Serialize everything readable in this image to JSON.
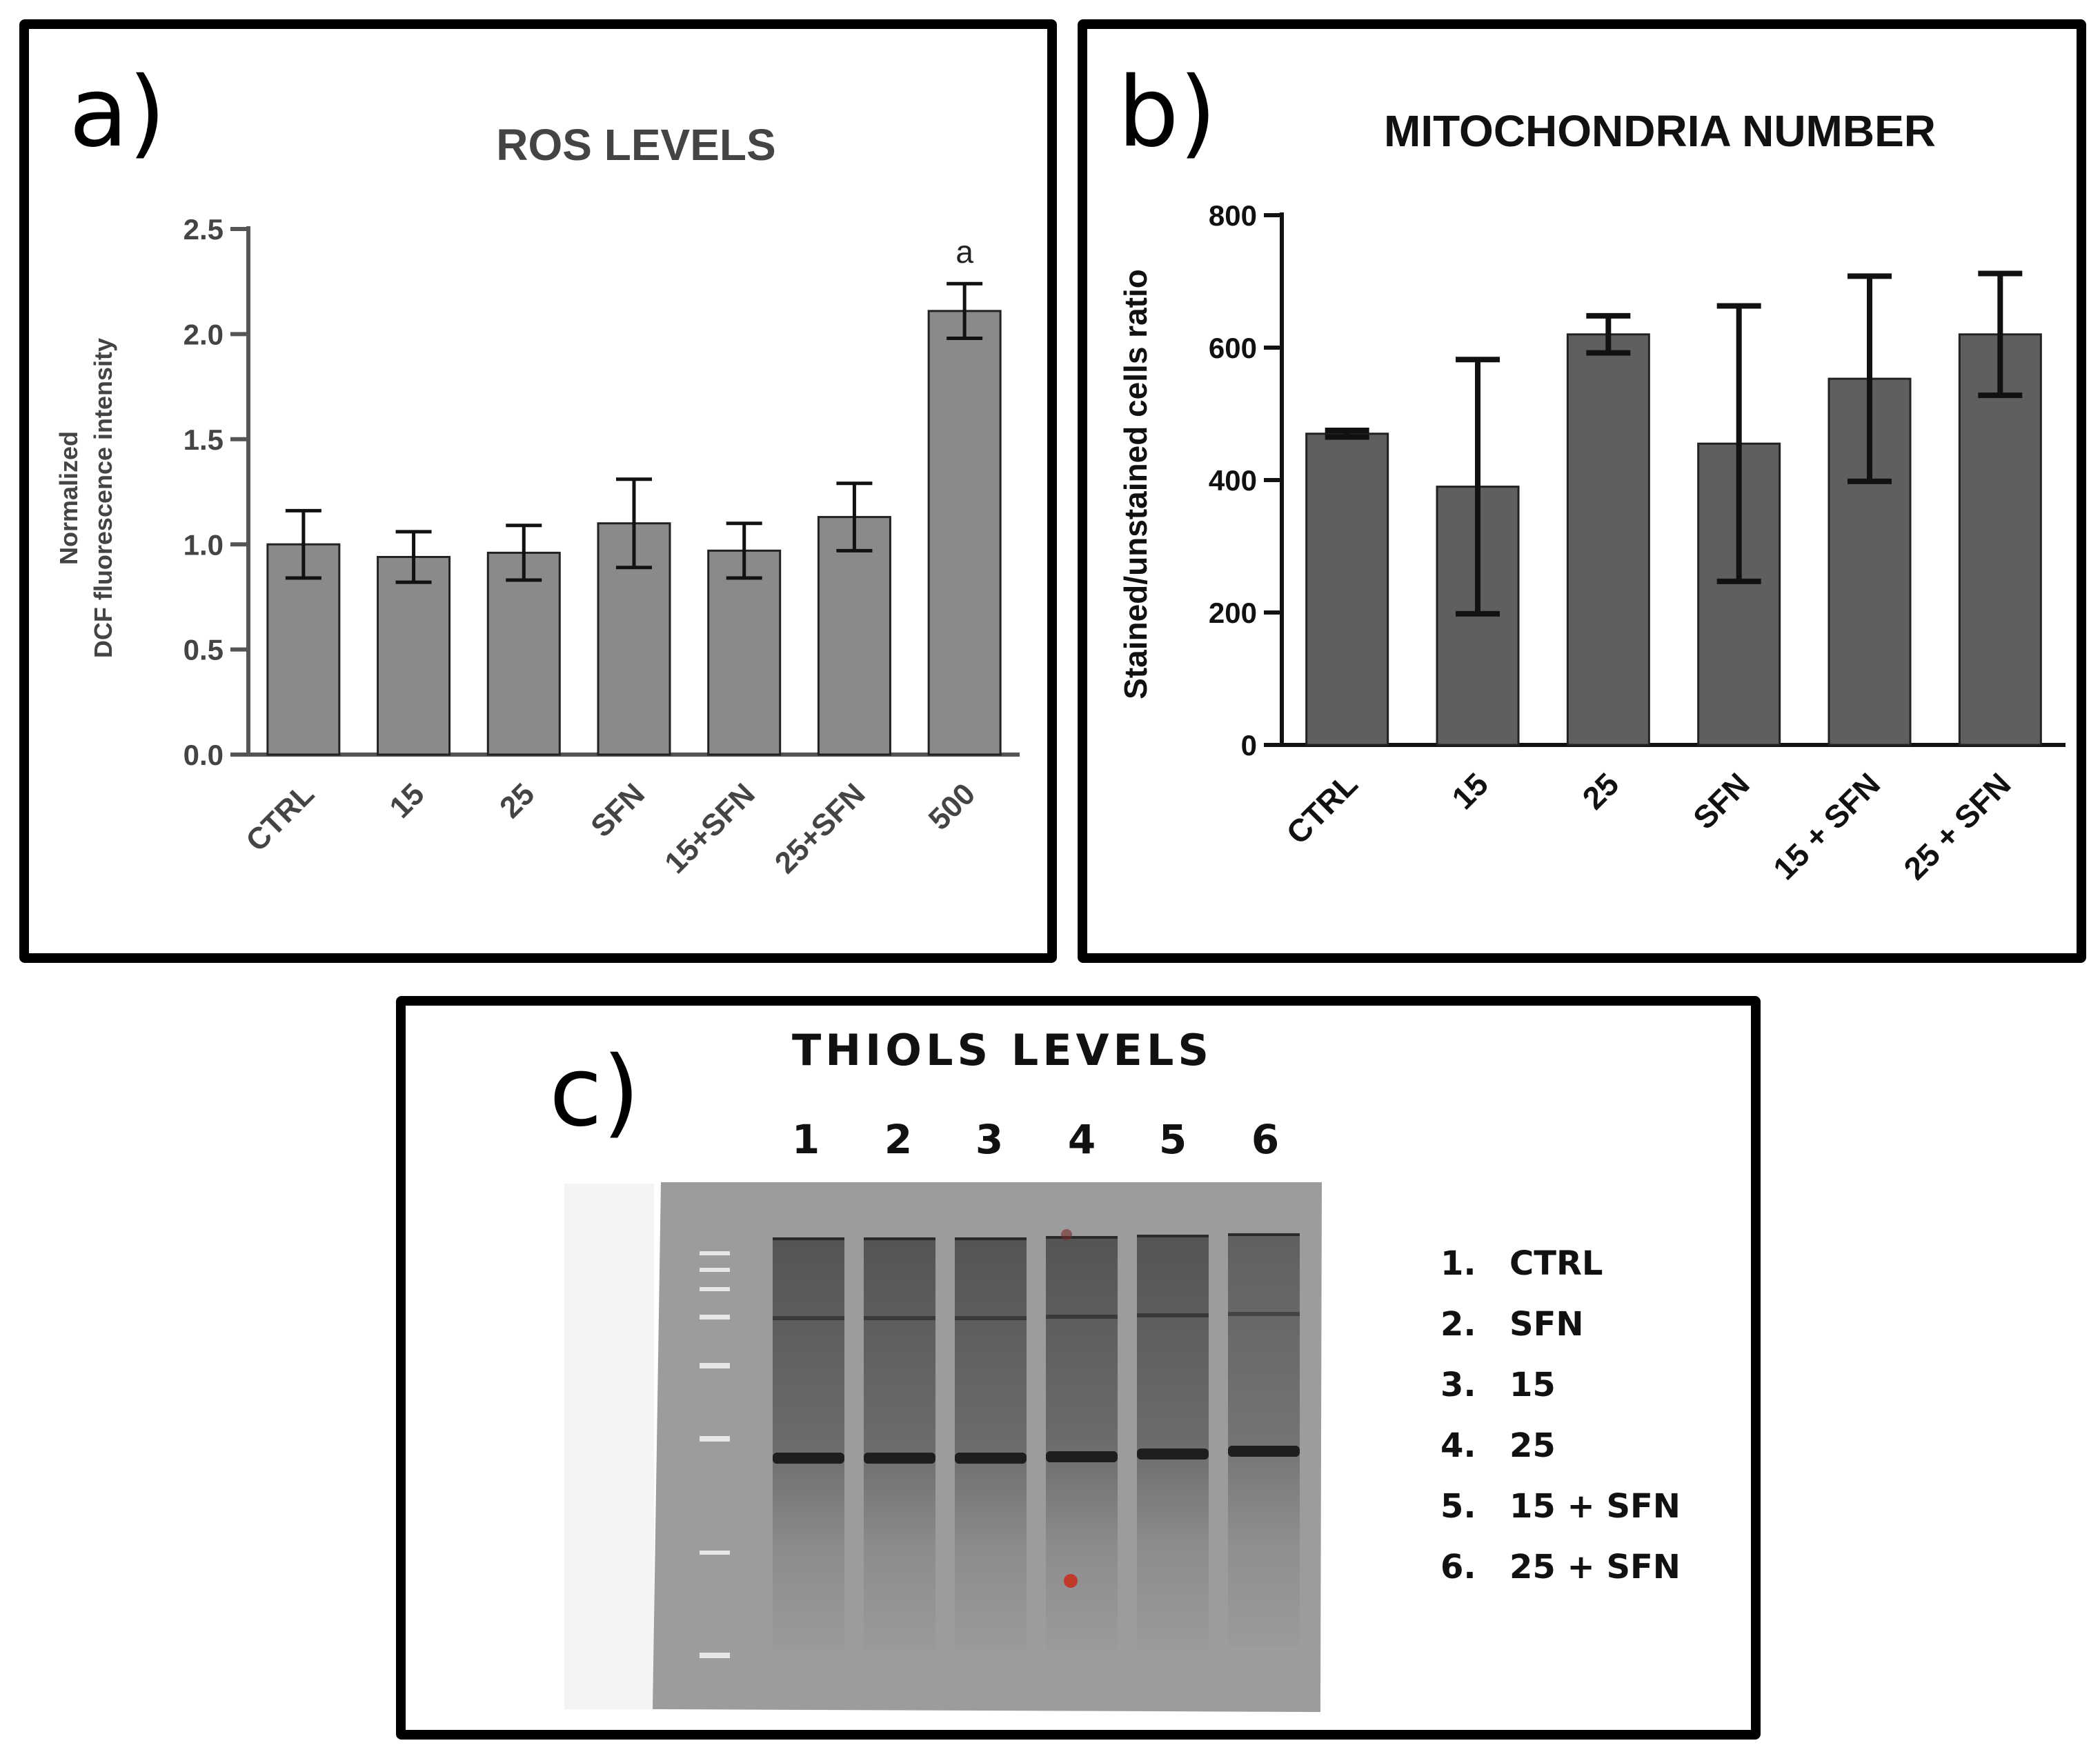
{
  "panels": {
    "a": {
      "letter": "a)"
    },
    "b": {
      "letter": "b)"
    },
    "c": {
      "letter": "c)"
    }
  },
  "chart_data": [
    {
      "id": "a",
      "type": "bar",
      "title": "ROS LEVELS",
      "ylabel_lines": [
        "Normalized",
        "DCF fluorescence intensity"
      ],
      "xlabel": "",
      "categories": [
        "CTRL",
        "15",
        "25",
        "SFN",
        "15+SFN",
        "25+SFN",
        "500"
      ],
      "values": [
        1.0,
        0.94,
        0.96,
        1.1,
        0.97,
        1.13,
        2.11
      ],
      "errors": [
        0.16,
        0.12,
        0.13,
        0.21,
        0.13,
        0.16,
        0.13
      ],
      "annotations": [
        {
          "category": "500",
          "text": "a"
        }
      ],
      "ylim": [
        0,
        2.5
      ],
      "yticks": [
        "0.0",
        "0.5",
        "1.0",
        "1.5",
        "2.0",
        "2.5"
      ],
      "bar_color": "#8a8a8a"
    },
    {
      "id": "b",
      "type": "bar",
      "title": "MITOCHONDRIA  NUMBER",
      "ylabel_lines": [
        "Stained/unstained cells ratio"
      ],
      "xlabel": "",
      "categories": [
        "CTRL",
        "15",
        "25",
        "SFN",
        "15 + SFN",
        "25 + SFN"
      ],
      "values": [
        470,
        390,
        620,
        455,
        553,
        620
      ],
      "errors": [
        5,
        192,
        28,
        208,
        155,
        92
      ],
      "annotations": [],
      "ylim": [
        0,
        800
      ],
      "yticks": [
        "0",
        "200",
        "400",
        "600",
        "800"
      ],
      "bar_color": "#5f5f5f"
    }
  ],
  "gel": {
    "title": "THIOLS LEVELS",
    "lane_numbers": [
      "1",
      "2",
      "3",
      "4",
      "5",
      "6"
    ],
    "legend": [
      {
        "num": "1.",
        "label": "CTRL"
      },
      {
        "num": "2.",
        "label": "SFN"
      },
      {
        "num": "3.",
        "label": "15"
      },
      {
        "num": "4.",
        "label": "25"
      },
      {
        "num": "5.",
        "label": "15 + SFN"
      },
      {
        "num": "6.",
        "label": "25 + SFN"
      }
    ]
  }
}
